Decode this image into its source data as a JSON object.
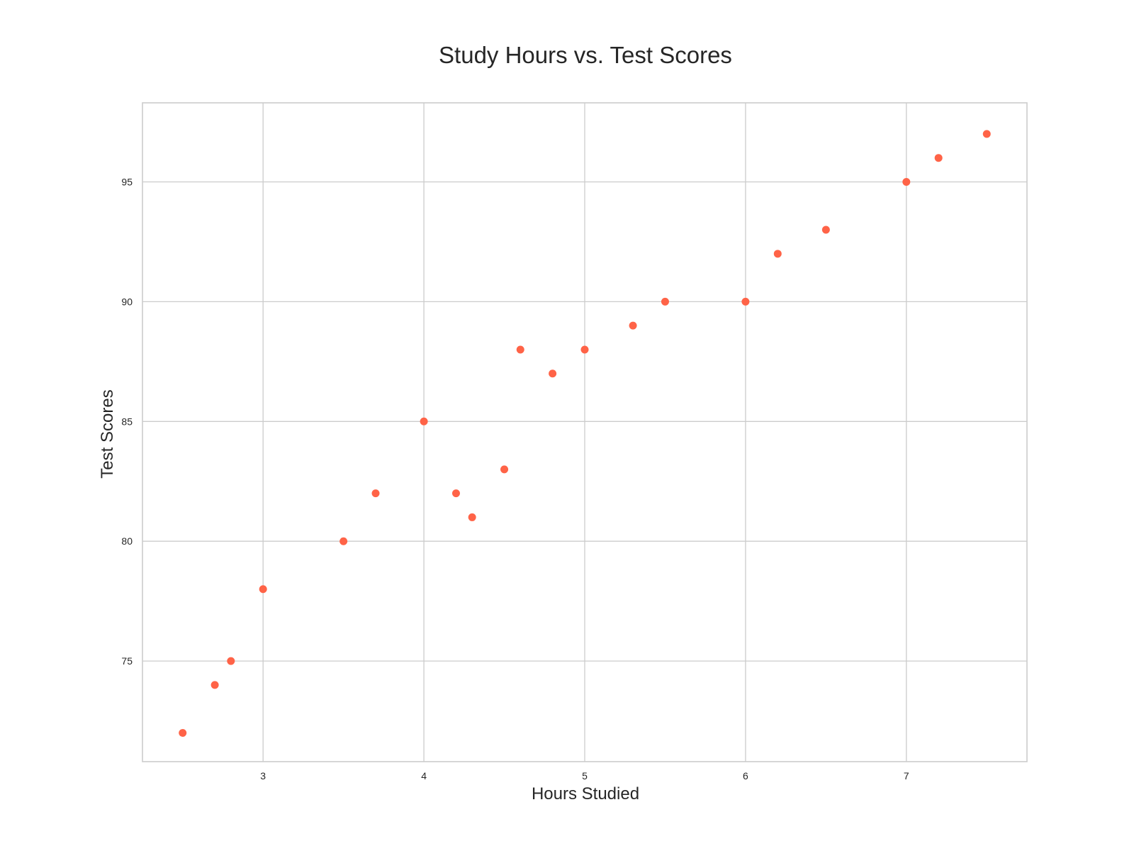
{
  "chart_data": {
    "type": "scatter",
    "title": "Study Hours vs. Test Scores",
    "xlabel": "Hours Studied",
    "ylabel": "Test Scores",
    "xlim": [
      2.25,
      7.75
    ],
    "ylim": [
      70.8,
      98.3
    ],
    "xticks": [
      3,
      4,
      5,
      6,
      7
    ],
    "yticks": [
      75,
      80,
      85,
      90,
      95
    ],
    "grid": true,
    "color": "#ff6347",
    "points": [
      {
        "x": 2.5,
        "y": 72
      },
      {
        "x": 2.7,
        "y": 74
      },
      {
        "x": 2.8,
        "y": 75
      },
      {
        "x": 3.0,
        "y": 78
      },
      {
        "x": 3.5,
        "y": 80
      },
      {
        "x": 3.7,
        "y": 82
      },
      {
        "x": 4.0,
        "y": 85
      },
      {
        "x": 4.2,
        "y": 82
      },
      {
        "x": 4.3,
        "y": 81
      },
      {
        "x": 4.5,
        "y": 83
      },
      {
        "x": 4.6,
        "y": 88
      },
      {
        "x": 4.8,
        "y": 87
      },
      {
        "x": 5.0,
        "y": 88
      },
      {
        "x": 5.3,
        "y": 89
      },
      {
        "x": 5.5,
        "y": 90
      },
      {
        "x": 6.0,
        "y": 90
      },
      {
        "x": 6.2,
        "y": 92
      },
      {
        "x": 6.5,
        "y": 93
      },
      {
        "x": 7.0,
        "y": 95
      },
      {
        "x": 7.2,
        "y": 96
      },
      {
        "x": 7.5,
        "y": 97
      }
    ]
  }
}
